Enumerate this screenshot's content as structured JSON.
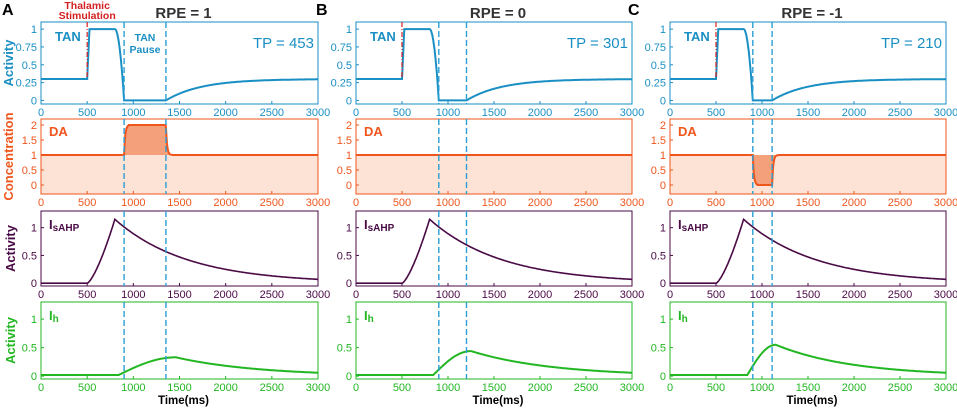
{
  "chart_data": {
    "type": "line",
    "x": {
      "label": "Time(ms)",
      "range": [
        0,
        3000
      ],
      "ticks": [
        "0",
        "500",
        "1000",
        "1500",
        "2000",
        "2500",
        "3000"
      ]
    },
    "panels": [
      {
        "letter": "A",
        "title": "RPE = 1",
        "tp_label": "TP = 453",
        "cue": 500,
        "pause_start": 900,
        "pause_end": 1353
      },
      {
        "letter": "B",
        "title": "RPE = 0",
        "tp_label": "TP = 301",
        "cue": 500,
        "pause_start": 900,
        "pause_end": 1201
      },
      {
        "letter": "C",
        "title": "RPE = -1",
        "tp_label": "TP = 210",
        "cue": 500,
        "pause_start": 900,
        "pause_end": 1110
      }
    ],
    "rows": [
      {
        "key": "tan",
        "ylabel": "Activity",
        "series_label": "TAN",
        "color": "#1a8fc4",
        "ylim": [
          -0.05,
          1.1
        ],
        "yticks": [
          "0",
          "0.25",
          "0.5",
          "0.75",
          "1"
        ]
      },
      {
        "key": "da",
        "ylabel": "Concentration",
        "series_label": "DA",
        "color": "#f0551c",
        "ylim": [
          -0.3,
          2.2
        ],
        "yticks": [
          "0",
          "0.5",
          "1",
          "1.5",
          "2"
        ]
      },
      {
        "key": "isahp",
        "ylabel": "Activity",
        "series_label": "IsAHP",
        "label_main": "I",
        "label_sub": "sAHP",
        "color": "#4a0a45",
        "ylim": [
          -0.05,
          1.3
        ],
        "yticks": [
          "0",
          "0.5",
          "1"
        ]
      },
      {
        "key": "ih",
        "ylabel": "Activity",
        "series_label": "Ih",
        "label_main": "I",
        "label_sub": "h",
        "color": "#22b722",
        "ylim": [
          -0.05,
          1.3
        ],
        "yticks": [
          "0",
          "0.5",
          "1"
        ]
      }
    ],
    "series": {
      "tan": {
        "baseline": 0.3,
        "stim_onset": 500,
        "stim_peak": 1.0,
        "stim_end": 800,
        "pause_level": 0.0,
        "recovery_asymptote": 0.3
      },
      "da": {
        "baseline": 1.0,
        "per_panel": [
          {
            "shape": "burst",
            "peak": 2.0,
            "from": 900,
            "to": 1353
          },
          {
            "shape": "flat"
          },
          {
            "shape": "dip",
            "min": 0.0,
            "from": 900,
            "to": 1110
          }
        ]
      },
      "isahp": {
        "onset": 500,
        "peak": 1.15,
        "peak_time": 800,
        "value_at_3000": 0.07
      },
      "ih": {
        "per_panel_peak": [
          0.33,
          0.44,
          0.55
        ],
        "per_panel_peak_time": [
          1460,
          1250,
          1150
        ],
        "value_at_3000": 0.06
      }
    },
    "annotations": {
      "stimulation": "Thalamic\nStimulation",
      "pause": "TAN\nPause"
    }
  }
}
